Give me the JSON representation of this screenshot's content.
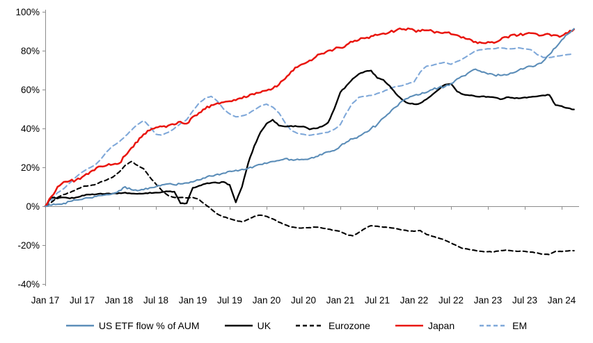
{
  "chart_data": {
    "type": "line",
    "title": "",
    "xlabel": "",
    "ylabel": "",
    "grid": false,
    "zero_line": true,
    "legend_position": "bottom",
    "axis_color": "#8c8c8c",
    "text_color": "#000000",
    "x_unit": "month-index from Jan 2017",
    "y_axis": {
      "min": -40,
      "max": 100,
      "tick_values": [
        100,
        80,
        60,
        40,
        20,
        0,
        -20,
        -40
      ],
      "tick_labels": [
        "100%",
        "80%",
        "60%",
        "40%",
        "20%",
        "0%",
        "-20%",
        "-40%"
      ]
    },
    "x_axis": {
      "tick_month_indices": [
        0,
        6,
        12,
        18,
        24,
        30,
        36,
        42,
        48,
        54,
        60,
        66,
        72,
        78,
        84
      ],
      "tick_labels": [
        "Jan 17",
        "Jul 17",
        "Jan 18",
        "Jul 18",
        "Jan 19",
        "Jul 19",
        "Jan 20",
        "Jul 20",
        "Jan 21",
        "Jul 21",
        "Jan 22",
        "Jul 22",
        "Jan 23",
        "Jul 23",
        "Jan 24"
      ]
    },
    "series": [
      {
        "name": "US ETF flow % of AUM",
        "color": "#5b8db8",
        "style": "solid",
        "values": [
          0,
          0.5,
          1,
          1.5,
          2.5,
          3.2,
          3.5,
          4.3,
          5,
          5.5,
          6,
          6.5,
          8,
          10,
          8.5,
          8,
          8.5,
          9.5,
          10,
          11,
          11.5,
          11,
          11.5,
          12,
          12.5,
          13.5,
          14.5,
          15.5,
          16.5,
          17,
          18,
          18.5,
          19,
          19.5,
          20.5,
          21.5,
          22,
          23,
          23.5,
          24.5,
          24,
          24.2,
          24,
          24.5,
          25.5,
          26.5,
          28,
          28.6,
          31,
          33,
          34.6,
          36,
          38,
          40,
          42,
          45.4,
          48,
          51,
          54,
          55.5,
          57,
          57.5,
          58.5,
          60,
          61,
          61.5,
          63,
          65.5,
          67,
          69,
          70.5,
          69,
          68,
          67.5,
          67.3,
          67.5,
          68.5,
          70,
          71,
          72,
          73,
          74.6,
          78,
          81.5,
          85.5,
          88.5,
          91.3
        ]
      },
      {
        "name": "UK",
        "color": "#000000",
        "style": "solid",
        "values": [
          0,
          4.5,
          4,
          4.5,
          4,
          4.5,
          5.5,
          6,
          6,
          6.5,
          6.5,
          6.5,
          6.8,
          7,
          6.5,
          6.4,
          6.5,
          7,
          7,
          7.3,
          7.6,
          7.5,
          1.5,
          1.5,
          9.5,
          10.5,
          11.5,
          12,
          12,
          12.5,
          11,
          2,
          10,
          22,
          31,
          38,
          42.5,
          44.5,
          41.5,
          41,
          41.3,
          41,
          41,
          39.5,
          40,
          41,
          43,
          50,
          58.6,
          62,
          65.5,
          68,
          69.3,
          69.8,
          66,
          65,
          62,
          58,
          55,
          53,
          52.5,
          53,
          55,
          57.5,
          60,
          62.5,
          63,
          59,
          57.5,
          57,
          56.5,
          56.5,
          56.3,
          56,
          55,
          56,
          55.8,
          55.5,
          56,
          56.2,
          56.5,
          57,
          57.2,
          52,
          51.5,
          50.5,
          49.8
        ]
      },
      {
        "name": "Eurozone",
        "color": "#000000",
        "style": "dashed",
        "values": [
          0,
          2,
          4.5,
          6,
          7,
          8.5,
          10,
          10.5,
          11,
          12.5,
          13.5,
          15,
          17.5,
          21,
          23,
          21,
          19.3,
          15,
          11.4,
          8,
          5.5,
          4.5,
          4.5,
          4.3,
          4.5,
          3.5,
          1,
          -1.5,
          -4,
          -5.5,
          -6.4,
          -7.3,
          -8,
          -6.8,
          -5.2,
          -4.6,
          -5.2,
          -6.5,
          -8.2,
          -9.5,
          -10.7,
          -11.1,
          -11.1,
          -11,
          -10.8,
          -11.2,
          -11.8,
          -12.4,
          -12.9,
          -14.6,
          -15.2,
          -13.5,
          -11.5,
          -10,
          -10.3,
          -10.8,
          -11,
          -11.5,
          -12.2,
          -12.7,
          -12.9,
          -12.5,
          -14.5,
          -15.5,
          -16.4,
          -17.5,
          -18.9,
          -20.5,
          -21.8,
          -22.3,
          -22.8,
          -23.2,
          -23.4,
          -23.5,
          -22.8,
          -22.5,
          -23,
          -23.2,
          -23.2,
          -23.6,
          -24,
          -24.7,
          -24.9,
          -23.2,
          -23.3,
          -23,
          -22.9
        ]
      },
      {
        "name": "Japan",
        "color": "#e9150d",
        "style": "solid",
        "values": [
          0,
          5,
          10,
          12.5,
          13,
          13.5,
          15,
          16.5,
          18.5,
          20.5,
          21,
          21.5,
          22,
          26,
          30,
          33,
          37,
          39,
          40.5,
          41,
          41.5,
          42,
          43.5,
          42.5,
          46,
          48,
          50,
          52,
          53,
          53.5,
          54,
          54.5,
          55.5,
          56.5,
          57.5,
          58.5,
          59.5,
          60.5,
          62.5,
          65.5,
          69.3,
          71.5,
          73.2,
          75,
          76.8,
          78.5,
          80,
          80.8,
          81.5,
          83,
          84.5,
          85.5,
          86.4,
          87.5,
          88,
          88.9,
          89.5,
          90.3,
          91,
          91.5,
          90.5,
          90,
          90.5,
          90,
          89.5,
          89.4,
          88.5,
          88,
          87,
          86,
          84.6,
          84,
          84.5,
          84,
          85.5,
          87,
          88.2,
          88,
          88.5,
          89,
          88.5,
          88,
          88.5,
          88,
          87.6,
          89,
          91
        ]
      },
      {
        "name": "EM",
        "color": "#7fa8d9",
        "style": "dashed",
        "values": [
          0,
          3,
          7,
          9,
          12,
          15,
          17.5,
          19.5,
          21,
          24,
          28,
          31,
          33,
          36,
          39,
          42,
          44,
          41,
          37,
          36.5,
          38,
          40,
          42.5,
          44.5,
          49,
          53,
          55.5,
          56.5,
          54,
          50,
          47.5,
          46,
          46.5,
          47.5,
          49.5,
          51.5,
          52.5,
          51,
          48,
          43,
          39,
          37.5,
          37,
          36.5,
          37,
          37.5,
          38,
          39.5,
          42,
          48,
          53,
          56,
          56.5,
          57,
          58,
          59,
          60.5,
          61.5,
          62,
          63,
          64,
          69,
          72,
          72.5,
          73.5,
          74,
          73,
          74.5,
          76,
          78,
          80,
          80.5,
          81,
          81,
          81.5,
          81,
          81,
          81.5,
          81,
          80.5,
          78,
          76.5,
          76.5,
          77,
          77.5,
          78,
          78.5
        ]
      }
    ]
  },
  "legend": {
    "items": [
      "US ETF flow % of AUM",
      "UK",
      "Eurozone",
      "Japan",
      "EM"
    ]
  }
}
